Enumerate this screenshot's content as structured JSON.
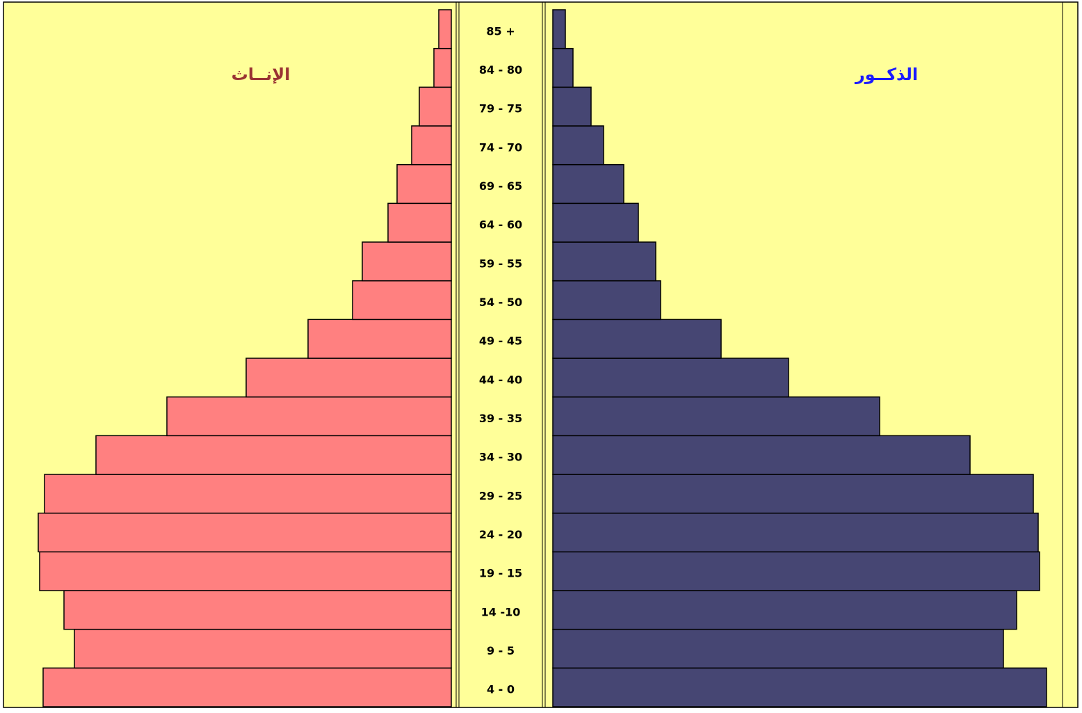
{
  "chart_data": {
    "type": "pyramid",
    "categories": [
      "4 - 0",
      "9 - 5",
      "14 -10",
      "19 - 15",
      "24 - 20",
      "29 - 25",
      "34 - 30",
      "39 - 35",
      "44 - 40",
      "49 - 45",
      "54 - 50",
      "59 - 55",
      "64 - 60",
      "69 - 65",
      "74 - 70",
      "79 - 75",
      "84 - 80",
      "85 +"
    ],
    "series": [
      {
        "name": "الإنــاث",
        "color": "#ff8080",
        "label_color": "#993333",
        "values": [
          587,
          542,
          557,
          592,
          594,
          585,
          511,
          409,
          295,
          206,
          142,
          128,
          91,
          78,
          57,
          46,
          25,
          18
        ]
      },
      {
        "name": "الذكــور",
        "color": "#464673",
        "label_color": "#1a1aff",
        "values": [
          710,
          648,
          667,
          700,
          698,
          691,
          600,
          470,
          339,
          242,
          155,
          148,
          123,
          102,
          73,
          55,
          29,
          18
        ]
      }
    ],
    "xlim": [
      0,
      730
    ]
  }
}
